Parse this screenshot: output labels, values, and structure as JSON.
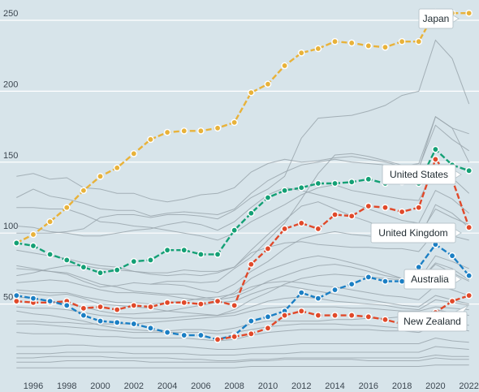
{
  "chart_data": {
    "type": "line",
    "title": "",
    "xlabel": "",
    "ylabel": "",
    "xlim": [
      1994.5,
      2022.5
    ],
    "ylim": [
      0,
      262
    ],
    "x_ticks": [
      1996,
      1998,
      2000,
      2002,
      2004,
      2006,
      2008,
      2010,
      2012,
      2014,
      2016,
      2018,
      2020,
      2022
    ],
    "y_ticks": [
      50,
      100,
      150,
      200,
      250
    ],
    "grid": "horizontal",
    "legend": "none; series labelled with callouts at right",
    "x": [
      1995,
      1996,
      1997,
      1998,
      1999,
      2000,
      2001,
      2002,
      2003,
      2004,
      2005,
      2006,
      2007,
      2008,
      2009,
      2010,
      2011,
      2012,
      2013,
      2014,
      2015,
      2016,
      2017,
      2018,
      2019,
      2020,
      2021,
      2022
    ],
    "series": [
      {
        "name": "Japan",
        "color": "#e8b23a",
        "values": [
          93,
          99,
          108,
          118,
          130,
          140,
          146,
          156,
          166,
          171,
          172,
          172,
          174,
          178,
          199,
          205,
          218,
          227,
          230,
          235,
          234,
          232,
          231,
          235,
          235,
          256,
          255,
          255
        ]
      },
      {
        "name": "United States",
        "color": "#14a075",
        "values": [
          93,
          91,
          85,
          81,
          76,
          72,
          74,
          80,
          81,
          88,
          88,
          85,
          85,
          102,
          114,
          125,
          130,
          132,
          135,
          135,
          136,
          138,
          135,
          136,
          135,
          159,
          148,
          144
        ]
      },
      {
        "name": "United Kingdom",
        "color": "#e0492a",
        "values": [
          52,
          51,
          51,
          52,
          47,
          48,
          46,
          49,
          48,
          51,
          51,
          50,
          52,
          49,
          78,
          89,
          103,
          107,
          103,
          113,
          112,
          119,
          118,
          115,
          118,
          152,
          138,
          104
        ]
      },
      {
        "name": "Australia",
        "color": "#1b7fc4",
        "values": [
          56,
          54,
          52,
          49,
          42,
          38,
          37,
          36,
          33,
          30,
          28,
          28,
          25,
          28,
          38,
          41,
          45,
          58,
          54,
          60,
          64,
          69,
          66,
          66,
          76,
          92,
          84,
          70
        ]
      },
      {
        "name": "New Zealand",
        "color": "#e0492a",
        "values": [
          null,
          null,
          null,
          null,
          null,
          null,
          null,
          null,
          null,
          null,
          null,
          null,
          25,
          27,
          29,
          33,
          42,
          45,
          42,
          42,
          42,
          41,
          39,
          36,
          36,
          44,
          52,
          56
        ]
      }
    ],
    "background_series": [
      {
        "values": [
          140,
          142,
          138,
          139,
          132,
          131,
          128,
          128,
          124,
          122,
          124,
          127,
          128,
          132,
          143,
          149,
          152,
          150,
          151,
          153,
          154,
          152,
          150,
          147,
          149,
          182,
          174,
          150
        ]
      },
      {
        "values": [
          125,
          131,
          126,
          124,
          121,
          117,
          116,
          116,
          112,
          114,
          115,
          114,
          113,
          117,
          128,
          137,
          143,
          148,
          150,
          152,
          150,
          149,
          148,
          146,
          146,
          176,
          166,
          158
        ]
      },
      {
        "values": [
          118,
          118,
          117,
          117,
          113,
          108,
          107,
          105,
          104,
          102,
          100,
          98,
          95,
          100,
          108,
          114,
          120,
          127,
          132,
          134,
          130,
          128,
          126,
          124,
          123,
          146,
          139,
          128
        ]
      },
      {
        "values": [
          105,
          104,
          101,
          100,
          98,
          98,
          100,
          102,
          103,
          106,
          108,
          106,
          102,
          108,
          118,
          127,
          132,
          130,
          127,
          124,
          121,
          117,
          113,
          109,
          107,
          130,
          124,
          114
        ]
      },
      {
        "values": [
          100,
          100,
          100,
          101,
          103,
          111,
          113,
          113,
          111,
          113,
          113,
          112,
          110,
          116,
          125,
          131,
          140,
          167,
          181,
          182,
          183,
          186,
          190,
          197,
          200,
          236,
          223,
          191
        ]
      },
      {
        "values": [
          null,
          null,
          null,
          null,
          null,
          null,
          null,
          null,
          64,
          66,
          66,
          65,
          66,
          75,
          83,
          95,
          107,
          124,
          142,
          155,
          156,
          154,
          151,
          148,
          145,
          182,
          174,
          170
        ]
      },
      {
        "values": [
          88,
          86,
          84,
          82,
          79,
          77,
          76,
          73,
          71,
          70,
          71,
          70,
          72,
          76,
          88,
          99,
          109,
          119,
          122,
          117,
          112,
          108,
          103,
          101,
          98,
          117,
          111,
          106
        ]
      },
      {
        "values": [
          70,
          72,
          75,
          77,
          77,
          75,
          74,
          73,
          72,
          72,
          74,
          73,
          73,
          76,
          86,
          90,
          93,
          94,
          92,
          91,
          90,
          90,
          89,
          89,
          87,
          101,
          98,
          95
        ]
      },
      {
        "values": [
          75,
          74,
          73,
          72,
          68,
          64,
          62,
          59,
          58,
          57,
          57,
          55,
          53,
          58,
          68,
          74,
          78,
          82,
          84,
          82,
          79,
          76,
          72,
          68,
          66,
          79,
          75,
          67
        ]
      },
      {
        "values": [
          77,
          75,
          73,
          71,
          66,
          62,
          63,
          65,
          64,
          64,
          63,
          60,
          58,
          64,
          73,
          80,
          89,
          96,
          99,
          101,
          99,
          98,
          96,
          96,
          95,
          120,
          114,
          104
        ]
      },
      {
        "values": [
          65,
          66,
          67,
          66,
          63,
          60,
          58,
          58,
          57,
          56,
          54,
          53,
          53,
          55,
          60,
          66,
          70,
          74,
          77,
          78,
          76,
          73,
          70,
          68,
          67,
          84,
          80,
          75
        ]
      },
      {
        "values": [
          58,
          57,
          56,
          57,
          54,
          50,
          49,
          48,
          47,
          45,
          44,
          43,
          42,
          46,
          53,
          58,
          64,
          68,
          70,
          71,
          70,
          69,
          68,
          67,
          66,
          78,
          72,
          66
        ]
      },
      {
        "values": [
          60,
          59,
          58,
          58,
          55,
          53,
          51,
          51,
          50,
          51,
          52,
          54,
          55,
          57,
          62,
          65,
          66,
          65,
          63,
          62,
          60,
          58,
          56,
          55,
          53,
          63,
          60,
          56
        ]
      },
      {
        "values": [
          55,
          54,
          52,
          50,
          48,
          45,
          43,
          43,
          44,
          45,
          47,
          49,
          51,
          52,
          57,
          61,
          63,
          61,
          59,
          57,
          55,
          53,
          51,
          49,
          48,
          56,
          53,
          50
        ]
      },
      {
        "values": [
          48,
          47,
          47,
          46,
          44,
          42,
          41,
          40,
          40,
          40,
          41,
          42,
          42,
          44,
          48,
          52,
          54,
          55,
          54,
          52,
          51,
          50,
          49,
          47,
          46,
          53,
          51,
          49
        ]
      },
      {
        "values": [
          38,
          38,
          37,
          37,
          36,
          36,
          36,
          36,
          37,
          38,
          39,
          40,
          41,
          42,
          45,
          47,
          48,
          48,
          48,
          48,
          47,
          47,
          46,
          45,
          45,
          48,
          47,
          46
        ]
      },
      {
        "values": [
          45,
          43,
          42,
          40,
          38,
          35,
          33,
          32,
          31,
          31,
          32,
          32,
          31,
          33,
          36,
          38,
          38,
          38,
          38,
          39,
          39,
          40,
          40,
          41,
          41,
          46,
          44,
          42
        ]
      },
      {
        "values": [
          36,
          36,
          35,
          34,
          33,
          32,
          31,
          30,
          30,
          30,
          30,
          30,
          29,
          30,
          32,
          34,
          35,
          36,
          36,
          36,
          35,
          35,
          34,
          33,
          33,
          37,
          36,
          35
        ]
      },
      {
        "values": [
          30,
          29,
          29,
          29,
          28,
          27,
          27,
          26,
          26,
          26,
          26,
          25,
          24,
          25,
          28,
          30,
          31,
          32,
          32,
          32,
          32,
          32,
          31,
          31,
          30,
          34,
          33,
          31
        ]
      },
      {
        "values": [
          20,
          20,
          20,
          21,
          21,
          20,
          20,
          20,
          20,
          20,
          20,
          19,
          18,
          18,
          19,
          20,
          21,
          22,
          22,
          22,
          22,
          22,
          22,
          22,
          22,
          26,
          24,
          23
        ]
      },
      {
        "values": [
          15,
          15,
          15,
          16,
          16,
          16,
          16,
          15,
          15,
          15,
          15,
          14,
          14,
          14,
          15,
          15,
          15,
          16,
          16,
          16,
          16,
          16,
          16,
          16,
          16,
          20,
          19,
          18
        ]
      },
      {
        "values": [
          12,
          12,
          13,
          13,
          13,
          13,
          12,
          12,
          12,
          12,
          11,
          11,
          10,
          10,
          11,
          11,
          12,
          12,
          12,
          12,
          12,
          12,
          12,
          12,
          12,
          14,
          13,
          13
        ]
      },
      {
        "values": [
          9,
          9,
          9,
          10,
          10,
          10,
          10,
          10,
          9,
          9,
          9,
          9,
          9,
          9,
          10,
          10,
          11,
          11,
          11,
          11,
          11,
          10,
          10,
          10,
          10,
          12,
          11,
          11
        ]
      },
      {
        "values": [
          5,
          5,
          5,
          5,
          5,
          5,
          5,
          5,
          5,
          5,
          5,
          5,
          5,
          5,
          6,
          6,
          6,
          6,
          6,
          6,
          6,
          6,
          6,
          6,
          6,
          7,
          7,
          7
        ]
      }
    ],
    "background_color": "#9aa6ad"
  }
}
